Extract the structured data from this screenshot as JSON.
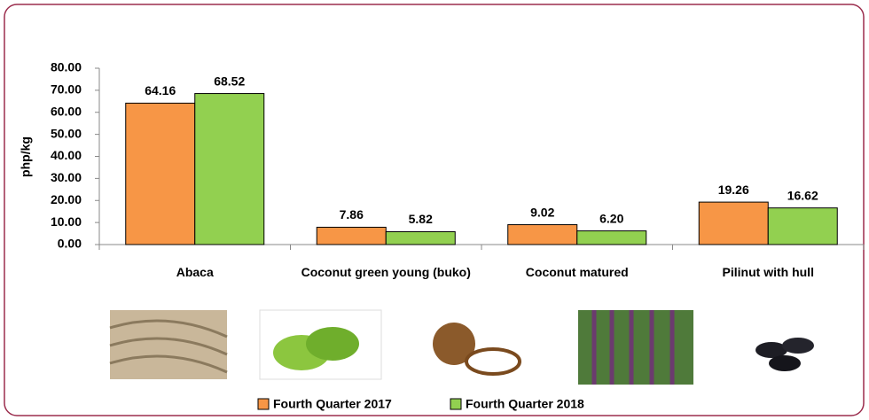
{
  "chart_data": {
    "type": "bar",
    "y_label": "php/kg",
    "categories": [
      "Abaca",
      "Coconut green young (buko)",
      "Coconut matured",
      "Pilinut with hull"
    ],
    "series": [
      {
        "name": "Fourth Quarter 2017",
        "color": "#f79646",
        "values": [
          64.16,
          7.86,
          9.02,
          19.26
        ],
        "value_labels": [
          "64.16",
          "7.86",
          "9.02",
          "19.26"
        ]
      },
      {
        "name": "Fourth Quarter 2018",
        "color": "#92d050",
        "values": [
          68.52,
          5.82,
          6.2,
          16.62
        ],
        "value_labels": [
          "68.52",
          "5.82",
          "6.20",
          "16.62"
        ]
      }
    ],
    "ylim": [
      0,
      80
    ],
    "yticks": [
      {
        "value": 0,
        "label": "0.00"
      },
      {
        "value": 10,
        "label": "10.00"
      },
      {
        "value": 20,
        "label": "20.00"
      },
      {
        "value": 30,
        "label": "30.00"
      },
      {
        "value": 40,
        "label": "40.00"
      },
      {
        "value": 50,
        "label": "50.00"
      },
      {
        "value": 60,
        "label": "60.00"
      },
      {
        "value": 70,
        "label": "70.00"
      },
      {
        "value": 80,
        "label": "80.00"
      }
    ]
  }
}
